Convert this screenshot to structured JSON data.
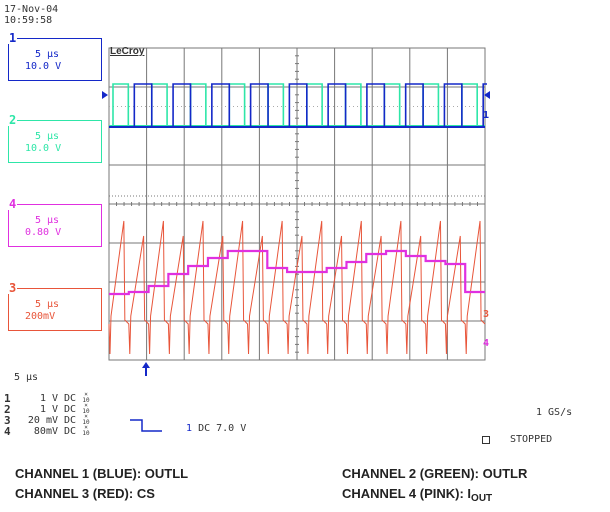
{
  "header": {
    "date": "17-Nov-04",
    "time": "10:59:58"
  },
  "brand": "LeCroy",
  "colors": {
    "ch1": "#1428c8",
    "ch2": "#2ee6a8",
    "ch3": "#e8553a",
    "ch4": "#e030e0",
    "grid": "#777777"
  },
  "channels": [
    {
      "num": "1",
      "timebase": "5 µs",
      "scale": "10.0 V",
      "color": "#1428c8"
    },
    {
      "num": "2",
      "timebase": "5 µs",
      "scale": "10.0 V",
      "color": "#2ee6a8"
    },
    {
      "num": "4",
      "timebase": "5 µs",
      "scale": "0.80 V",
      "color": "#e030e0"
    },
    {
      "num": "3",
      "timebase": "5 µs",
      "scale": "200mV",
      "color": "#e8553a"
    }
  ],
  "timebase": "5 µs",
  "channel_table": [
    {
      "num": "1",
      "volts": "1  V",
      "coupling": "DC"
    },
    {
      "num": "2",
      "volts": "1  V",
      "coupling": "DC"
    },
    {
      "num": "3",
      "volts": "20 mV",
      "coupling": "DC"
    },
    {
      "num": "4",
      "volts": "80mV",
      "coupling": "DC"
    }
  ],
  "trigger": {
    "channel": "1",
    "text": "DC 7.0 V"
  },
  "sample_rate": "1 GS/s",
  "status": "STOPPED",
  "legend": {
    "ch1": "CHANNEL 1 (BLUE): OUTLL",
    "ch2": "CHANNEL 2 (GREEN): OUTLR",
    "ch3": "CHANNEL 3 (RED): CS",
    "ch4_prefix": "CHANNEL 4 (PINK): I",
    "ch4_sub": "OUT"
  },
  "trace_markers": {
    "right_1": "1",
    "right_3": "3",
    "right_4": "4"
  }
}
